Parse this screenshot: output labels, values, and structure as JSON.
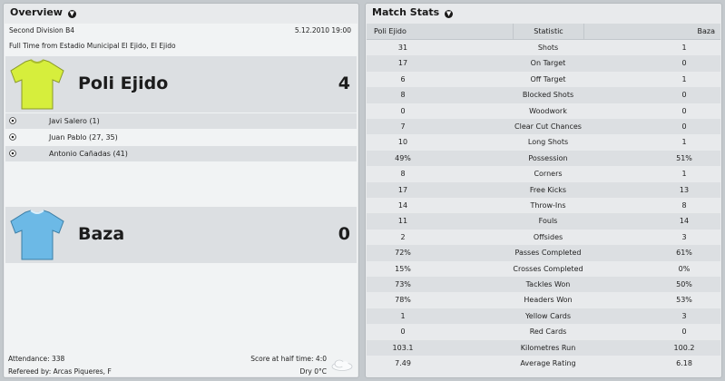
{
  "overview": {
    "title": "Overview",
    "division": "Second Division B4",
    "date": "5.12.2010 19:00",
    "venue_line": "Full Time from Estadio Municipal El Ejido, El Ejido",
    "home": {
      "name": "Poli Ejido",
      "score": "4",
      "shirt_color": "#d6ee3c",
      "scorers": [
        "Javi Salero (1)",
        "Juan Pablo (27, 35)",
        "Antonio Cañadas (41)"
      ]
    },
    "away": {
      "name": "Baza",
      "score": "0",
      "shirt_color": "#6cb9e6"
    },
    "attendance": "Attendance: 338",
    "referee": "Refereed by: Arcas Piqueres, F",
    "half_time": "Score at half time: 4:0",
    "weather": "Dry 0°C"
  },
  "stats": {
    "title": "Match Stats",
    "header": {
      "home": "Poli Ejido",
      "statistic": "Statistic",
      "away": "Baza"
    },
    "rows": [
      {
        "label": "Shots",
        "home": "31",
        "away": "1"
      },
      {
        "label": "On Target",
        "home": "17",
        "away": "0"
      },
      {
        "label": "Off Target",
        "home": "6",
        "away": "1"
      },
      {
        "label": "Blocked Shots",
        "home": "8",
        "away": "0"
      },
      {
        "label": "Woodwork",
        "home": "0",
        "away": "0"
      },
      {
        "label": "Clear Cut Chances",
        "home": "7",
        "away": "0"
      },
      {
        "label": "Long Shots",
        "home": "10",
        "away": "1"
      },
      {
        "label": "Possession",
        "home": "49%",
        "away": "51%"
      },
      {
        "label": "Corners",
        "home": "8",
        "away": "1"
      },
      {
        "label": "Free Kicks",
        "home": "17",
        "away": "13"
      },
      {
        "label": "Throw-Ins",
        "home": "14",
        "away": "8"
      },
      {
        "label": "Fouls",
        "home": "11",
        "away": "14"
      },
      {
        "label": "Offsides",
        "home": "2",
        "away": "3"
      },
      {
        "label": "Passes Completed",
        "home": "72%",
        "away": "61%"
      },
      {
        "label": "Crosses Completed",
        "home": "15%",
        "away": "0%"
      },
      {
        "label": "Tackles Won",
        "home": "73%",
        "away": "50%"
      },
      {
        "label": "Headers Won",
        "home": "78%",
        "away": "53%"
      },
      {
        "label": "Yellow Cards",
        "home": "1",
        "away": "3"
      },
      {
        "label": "Red Cards",
        "home": "0",
        "away": "0"
      },
      {
        "label": "Kilometres Run",
        "home": "103.1",
        "away": "100.2"
      },
      {
        "label": "Average Rating",
        "home": "7.49",
        "away": "6.18"
      }
    ]
  },
  "icons": {
    "chevron": "chevron-down-icon",
    "ball": "football-icon",
    "weather": "cloud-icon"
  }
}
